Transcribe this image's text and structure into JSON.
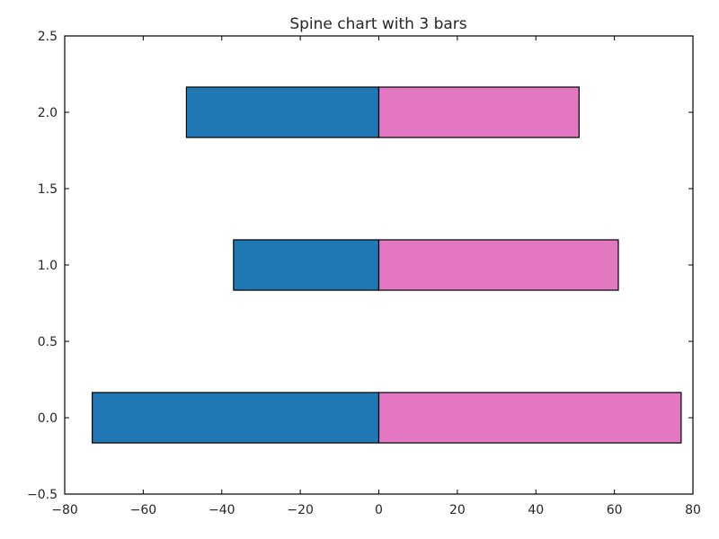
{
  "chart_data": {
    "type": "bar",
    "orientation": "horizontal",
    "stacking": "diverging",
    "title": "Spine chart with 3 bars",
    "xlabel": "",
    "ylabel": "",
    "categories": [
      0,
      1,
      2
    ],
    "series": [
      {
        "color": "#1f77b4",
        "values": [
          -73,
          -37,
          -49
        ]
      },
      {
        "color": "#e377c2",
        "values": [
          77,
          61,
          51
        ]
      }
    ],
    "bar_height": 0.33,
    "xlim": [
      -80,
      80
    ],
    "ylim": [
      -0.5,
      2.5
    ],
    "xticks": [
      -80,
      -60,
      -40,
      -20,
      0,
      20,
      40,
      60,
      80
    ],
    "xtick_labels": [
      "−80",
      "−60",
      "−40",
      "−20",
      "0",
      "20",
      "40",
      "60",
      "80"
    ],
    "yticks": [
      -0.5,
      0.0,
      0.5,
      1.0,
      1.5,
      2.0,
      2.5
    ],
    "ytick_labels": [
      "−0.5",
      "0.0",
      "0.5",
      "1.0",
      "1.5",
      "2.0",
      "2.5"
    ],
    "grid": false,
    "legend": "none"
  }
}
